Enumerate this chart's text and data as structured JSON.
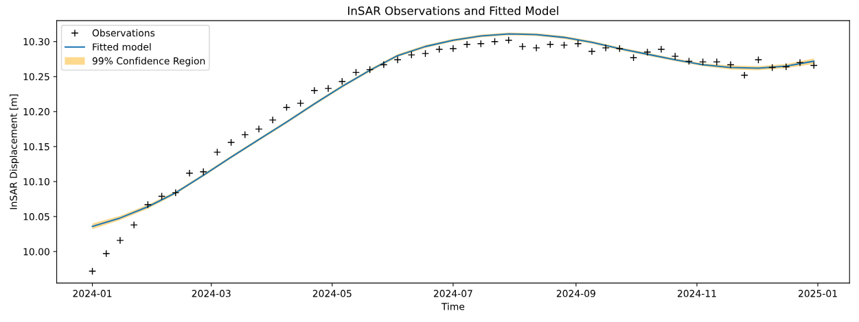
{
  "chart_data": {
    "type": "line",
    "title": "InSAR Observations and Fitted Model",
    "xlabel": "Time",
    "ylabel": "InSAR Displacement [m]",
    "xlim": [
      "2023-12-14",
      "2025-01-17"
    ],
    "ylim": [
      9.955,
      10.33
    ],
    "xticks": [
      {
        "value": "2024-01-01",
        "label": "2024-01"
      },
      {
        "value": "2024-03-01",
        "label": "2024-03"
      },
      {
        "value": "2024-05-01",
        "label": "2024-05"
      },
      {
        "value": "2024-07-01",
        "label": "2024-07"
      },
      {
        "value": "2024-09-01",
        "label": "2024-09"
      },
      {
        "value": "2024-11-01",
        "label": "2024-11"
      },
      {
        "value": "2025-01-01",
        "label": "2025-01"
      }
    ],
    "yticks": [
      {
        "value": 10.0,
        "label": "10.00"
      },
      {
        "value": 10.05,
        "label": "10.05"
      },
      {
        "value": 10.1,
        "label": "10.10"
      },
      {
        "value": 10.15,
        "label": "10.15"
      },
      {
        "value": 10.2,
        "label": "10.20"
      },
      {
        "value": 10.25,
        "label": "10.25"
      },
      {
        "value": 10.3,
        "label": "10.30"
      }
    ],
    "legend": "top left",
    "grid": false,
    "series": [
      {
        "name": "Observations",
        "type": "scatter",
        "marker": "cross",
        "color": "#000000",
        "x": [
          "2024-01-01",
          "2024-01-08",
          "2024-01-15",
          "2024-01-22",
          "2024-01-29",
          "2024-02-05",
          "2024-02-12",
          "2024-02-19",
          "2024-02-26",
          "2024-03-04",
          "2024-03-11",
          "2024-03-18",
          "2024-03-25",
          "2024-04-01",
          "2024-04-08",
          "2024-04-15",
          "2024-04-22",
          "2024-04-29",
          "2024-05-06",
          "2024-05-13",
          "2024-05-20",
          "2024-05-27",
          "2024-06-03",
          "2024-06-10",
          "2024-06-17",
          "2024-06-24",
          "2024-07-01",
          "2024-07-08",
          "2024-07-15",
          "2024-07-22",
          "2024-07-29",
          "2024-08-05",
          "2024-08-12",
          "2024-08-19",
          "2024-08-26",
          "2024-09-02",
          "2024-09-09",
          "2024-09-16",
          "2024-09-23",
          "2024-09-30",
          "2024-10-07",
          "2024-10-14",
          "2024-10-21",
          "2024-10-28",
          "2024-11-04",
          "2024-11-11",
          "2024-11-18",
          "2024-11-25",
          "2024-12-02",
          "2024-12-09",
          "2024-12-16",
          "2024-12-23",
          "2024-12-30"
        ],
        "values": [
          9.972,
          9.997,
          10.016,
          10.038,
          10.067,
          10.079,
          10.084,
          10.112,
          10.114,
          10.142,
          10.156,
          10.167,
          10.175,
          10.188,
          10.206,
          10.212,
          10.23,
          10.233,
          10.243,
          10.256,
          10.26,
          10.267,
          10.274,
          10.281,
          10.283,
          10.289,
          10.29,
          10.296,
          10.297,
          10.3,
          10.302,
          10.293,
          10.291,
          10.296,
          10.295,
          10.297,
          10.286,
          10.291,
          10.29,
          10.277,
          10.285,
          10.289,
          10.279,
          10.272,
          10.271,
          10.271,
          10.267,
          10.252,
          10.274,
          10.263,
          10.264,
          10.27,
          10.266
        ]
      },
      {
        "name": "Fitted model",
        "color": "#1f77b4",
        "x": [
          "2024-01-01",
          "2024-01-15",
          "2024-01-29",
          "2024-02-12",
          "2024-02-26",
          "2024-03-11",
          "2024-03-25",
          "2024-04-08",
          "2024-04-22",
          "2024-05-06",
          "2024-05-20",
          "2024-06-03",
          "2024-06-17",
          "2024-07-01",
          "2024-07-15",
          "2024-07-29",
          "2024-08-12",
          "2024-08-26",
          "2024-09-09",
          "2024-09-23",
          "2024-10-07",
          "2024-10-21",
          "2024-11-04",
          "2024-11-18",
          "2024-12-02",
          "2024-12-16",
          "2024-12-30"
        ],
        "values": [
          10.036,
          10.048,
          10.064,
          10.084,
          10.109,
          10.135,
          10.16,
          10.185,
          10.211,
          10.236,
          10.259,
          10.28,
          10.293,
          10.302,
          10.308,
          10.311,
          10.31,
          10.306,
          10.299,
          10.29,
          10.282,
          10.274,
          10.267,
          10.263,
          10.262,
          10.265,
          10.272
        ],
        "lower": [
          10.032,
          10.045,
          10.061,
          10.082,
          10.107,
          10.133,
          10.158,
          10.183,
          10.209,
          10.234,
          10.257,
          10.278,
          10.291,
          10.3,
          10.306,
          10.309,
          10.308,
          10.304,
          10.297,
          10.288,
          10.28,
          10.272,
          10.265,
          10.26,
          10.259,
          10.262,
          10.268
        ],
        "upper": [
          10.04,
          10.051,
          10.067,
          10.086,
          10.111,
          10.137,
          10.162,
          10.187,
          10.213,
          10.238,
          10.261,
          10.282,
          10.295,
          10.304,
          10.31,
          10.313,
          10.312,
          10.308,
          10.301,
          10.292,
          10.284,
          10.276,
          10.269,
          10.266,
          10.265,
          10.268,
          10.276
        ]
      },
      {
        "name": "99% Confidence Region",
        "type": "area",
        "color": "#fdd98e"
      }
    ]
  }
}
